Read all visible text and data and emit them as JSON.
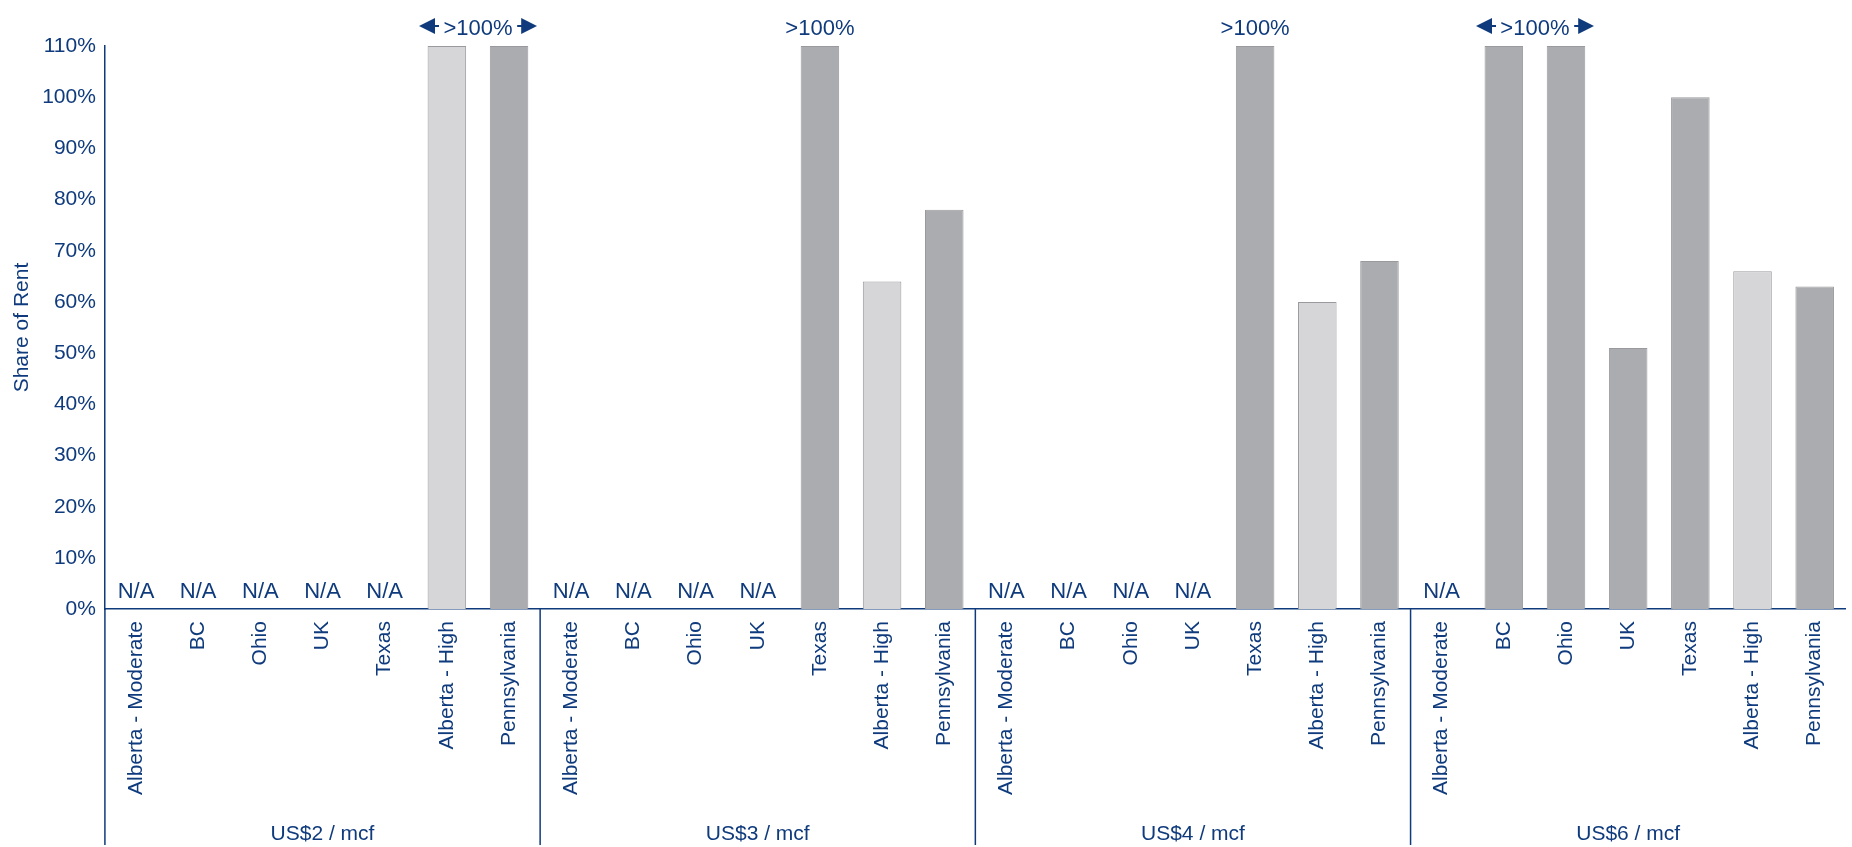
{
  "chart_data": {
    "type": "bar",
    "ylabel": "Share of Rent",
    "categories": [
      "Alberta - Moderate",
      "BC",
      "Ohio",
      "UK",
      "Texas",
      "Alberta - High",
      "Pennsylvania",
      "Alberta - Moderate",
      "BC",
      "Ohio",
      "UK",
      "Texas",
      "Alberta - High",
      "Pennsylvania",
      "Alberta - Moderate",
      "BC",
      "Ohio",
      "UK",
      "Texas",
      "Alberta - High",
      "Pennsylvania",
      "Alberta - Moderate",
      "BC",
      "Ohio",
      "UK",
      "Texas",
      "Alberta - High",
      "Pennsylvania"
    ],
    "values": [
      null,
      null,
      null,
      null,
      null,
      110,
      110,
      null,
      null,
      null,
      null,
      110,
      64,
      78,
      null,
      null,
      null,
      null,
      110,
      60,
      68,
      null,
      110,
      110,
      51,
      100,
      66,
      63
    ],
    "colors": [
      "#abacb0",
      "#abacb0",
      "#abacb0",
      "#abacb0",
      "#abacb0",
      "#d6d6d8",
      "#abacb0",
      "#abacb0",
      "#abacb0",
      "#abacb0",
      "#abacb0",
      "#abacb0",
      "#d6d6d8",
      "#abacb0",
      "#abacb0",
      "#abacb0",
      "#abacb0",
      "#abacb0",
      "#abacb0",
      "#d6d6d8",
      "#abacb0",
      "#abacb0",
      "#abacb0",
      "#abacb0",
      "#abacb0",
      "#abacb0",
      "#d6d6d8",
      "#abacb0"
    ],
    "value_labels": [
      "N/A",
      "N/A",
      "N/A",
      "N/A",
      "N/A",
      ">100%",
      null,
      "N/A",
      "N/A",
      "N/A",
      "N/A",
      ">100%",
      null,
      null,
      "N/A",
      "N/A",
      "N/A",
      "N/A",
      ">100%",
      null,
      null,
      "N/A",
      ">100%",
      null,
      null,
      null,
      null,
      null
    ],
    "ylim": [
      0,
      110
    ],
    "yticks": [
      {
        "value": 0,
        "label": "0%"
      },
      {
        "value": 10,
        "label": "10%"
      },
      {
        "value": 20,
        "label": "20%"
      },
      {
        "value": 30,
        "label": "30%"
      },
      {
        "value": 40,
        "label": "40%"
      },
      {
        "value": 50,
        "label": "50%"
      },
      {
        "value": 60,
        "label": "60%"
      },
      {
        "value": 70,
        "label": "70%"
      },
      {
        "value": 80,
        "label": "80%"
      },
      {
        "value": 90,
        "label": "90%"
      },
      {
        "value": 100,
        "label": "100%"
      },
      {
        "value": 110,
        "label": "110%"
      }
    ],
    "annotations": [
      "US$2 / mcf",
      "US$3 / mcf",
      "US$4 / mcf",
      "US$6 / mcf"
    ],
    "grid": false,
    "legend": false
  }
}
